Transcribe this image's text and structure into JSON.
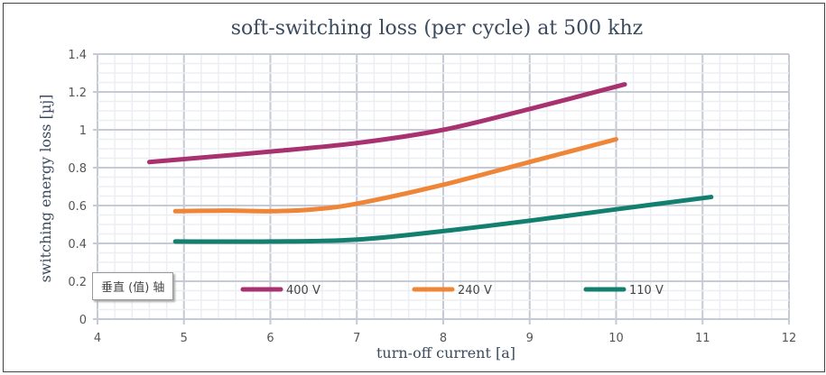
{
  "chart_data": {
    "type": "line",
    "title": "soft-switching loss (per cycle) at 500 khz",
    "xlabel": "turn-off current [a]",
    "ylabel": "switching energy loss [µj]",
    "xlim": [
      4,
      12
    ],
    "ylim": [
      0,
      1.4
    ],
    "xticks": [
      "4",
      "5",
      "6",
      "7",
      "8",
      "9",
      "10",
      "11",
      "12"
    ],
    "yticks": [
      "0",
      "0.2",
      "0.4",
      "0.6",
      "0.8",
      "1",
      "1.2",
      "1.4"
    ],
    "grid": true,
    "legend": "bottom",
    "series": [
      {
        "name": "400 V",
        "color": "#a8316f",
        "x": [
          4.6,
          5,
          6,
          7,
          8,
          9,
          10.1
        ],
        "y": [
          0.83,
          0.845,
          0.885,
          0.93,
          1.0,
          1.11,
          1.24
        ]
      },
      {
        "name": "240 V",
        "color": "#ef8536",
        "x": [
          4.9,
          5.5,
          6,
          6.5,
          7,
          8,
          9,
          10
        ],
        "y": [
          0.57,
          0.573,
          0.57,
          0.58,
          0.61,
          0.71,
          0.83,
          0.95
        ]
      },
      {
        "name": "110 V",
        "color": "#127f6f",
        "x": [
          4.9,
          6,
          7,
          8,
          9,
          10,
          11.1
        ],
        "y": [
          0.41,
          0.41,
          0.42,
          0.465,
          0.52,
          0.58,
          0.645
        ]
      }
    ]
  },
  "tooltip": "垂直 (值) 轴"
}
